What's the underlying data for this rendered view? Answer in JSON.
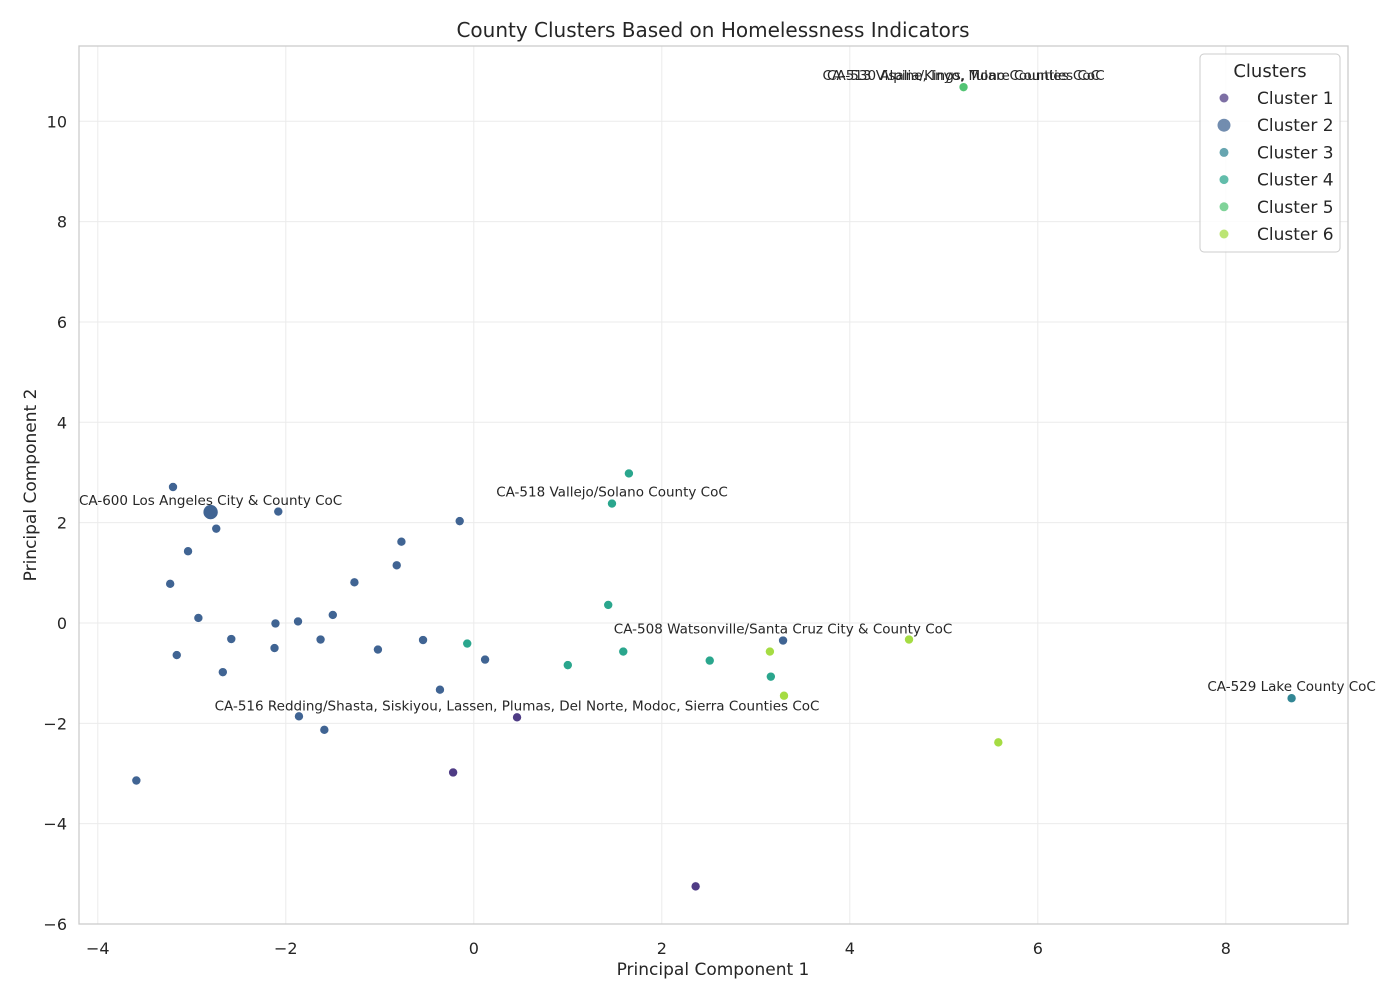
{
  "chart_data": {
    "type": "scatter",
    "title": "County Clusters Based on Homelessness Indicators",
    "xlabel": "Principal Component 1",
    "ylabel": "Principal Component 2",
    "xlim": [
      -4.2,
      9.3
    ],
    "ylim": [
      -6.0,
      11.5
    ],
    "xticks": [
      -4,
      -2,
      0,
      2,
      4,
      6,
      8
    ],
    "xtick_labels": [
      "−4",
      "−2",
      "0",
      "2",
      "4",
      "6",
      "8"
    ],
    "yticks": [
      -6,
      -4,
      -2,
      0,
      2,
      4,
      6,
      8,
      10
    ],
    "ytick_labels": [
      "−6",
      "−4",
      "−2",
      "0",
      "2",
      "4",
      "6",
      "8",
      "10"
    ],
    "grid": true,
    "legend": {
      "title": "Clusters",
      "placement": "top-right"
    },
    "series": [
      {
        "name": "Cluster 1",
        "color": "#46327e",
        "points": [
          [
            0.46,
            -1.88
          ],
          [
            -0.22,
            -2.98
          ],
          [
            2.36,
            -5.25
          ]
        ]
      },
      {
        "name": "Cluster 2",
        "color": "#365c8d",
        "points": [
          [
            -2.8,
            2.21,
            "large"
          ],
          [
            -3.2,
            2.71
          ],
          [
            -2.08,
            2.22
          ],
          [
            -2.74,
            1.88
          ],
          [
            -3.04,
            1.43
          ],
          [
            -3.23,
            0.78
          ],
          [
            -2.93,
            0.1
          ],
          [
            -2.58,
            -0.32
          ],
          [
            -3.16,
            -0.64
          ],
          [
            -2.67,
            -0.98
          ],
          [
            -2.11,
            -0.01
          ],
          [
            -2.12,
            -0.5
          ],
          [
            -1.87,
            0.03
          ],
          [
            -1.63,
            -0.33
          ],
          [
            -1.5,
            0.16
          ],
          [
            -1.27,
            0.81
          ],
          [
            -0.82,
            1.15
          ],
          [
            -0.77,
            1.62
          ],
          [
            -1.02,
            -0.53
          ],
          [
            -0.54,
            -0.34
          ],
          [
            -0.15,
            2.03
          ],
          [
            0.12,
            -0.73
          ],
          [
            -0.36,
            -1.33
          ],
          [
            -1.86,
            -1.86
          ],
          [
            -1.59,
            -2.13
          ],
          [
            -3.59,
            -3.14
          ],
          [
            3.29,
            -0.35
          ]
        ]
      },
      {
        "name": "Cluster 3",
        "color": "#277f8e",
        "points": [
          [
            8.7,
            -1.5
          ]
        ]
      },
      {
        "name": "Cluster 4",
        "color": "#1fa187",
        "points": [
          [
            1.65,
            2.98
          ],
          [
            1.47,
            2.38
          ],
          [
            1.43,
            0.36
          ],
          [
            -0.07,
            -0.41
          ],
          [
            1.0,
            -0.84
          ],
          [
            1.59,
            -0.57
          ],
          [
            2.51,
            -0.75
          ],
          [
            3.16,
            -1.07
          ]
        ]
      },
      {
        "name": "Cluster 5",
        "color": "#4ac16d",
        "points": [
          [
            5.21,
            10.68
          ]
        ]
      },
      {
        "name": "Cluster 6",
        "color": "#a0da39",
        "points": [
          [
            3.15,
            -0.57
          ],
          [
            4.63,
            -0.33
          ],
          [
            3.3,
            -1.45
          ],
          [
            5.58,
            -2.38
          ]
        ]
      }
    ],
    "annotations": [
      {
        "text": "CA-530 Alpine, Inyo, Mono Counties CoC",
        "x": 5.21,
        "y": 10.68
      },
      {
        "text": "CA-513 Visalia/Kings, Tulare Counties CoC",
        "x": 5.21,
        "y": 10.68
      },
      {
        "text": "CA-600 Los Angeles City & County CoC",
        "x": -2.8,
        "y": 2.21
      },
      {
        "text": "CA-518 Vallejo/Solano County CoC",
        "x": 1.47,
        "y": 2.38
      },
      {
        "text": "CA-508 Watsonville/Santa Cruz City & County CoC",
        "x": 3.29,
        "y": -0.35
      },
      {
        "text": "CA-529 Lake County CoC",
        "x": 8.7,
        "y": -1.5
      },
      {
        "text": "CA-516 Redding/Shasta, Siskiyou, Lassen, Plumas, Del Norte, Modoc, Sierra Counties CoC",
        "x": 0.46,
        "y": -1.88
      }
    ]
  }
}
